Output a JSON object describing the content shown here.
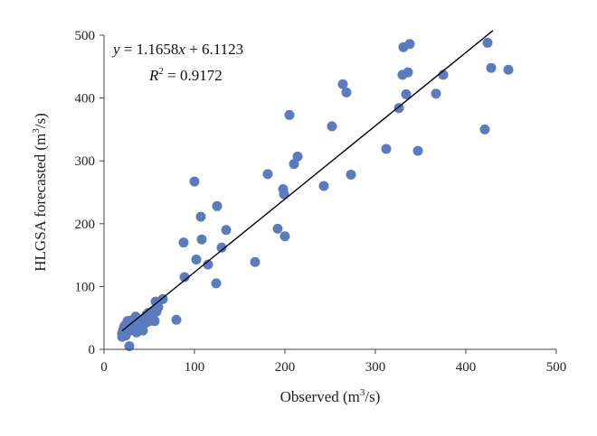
{
  "chart_data": {
    "type": "scatter",
    "xlabel": "Observed (m",
    "xlabel_sup": "3",
    "xlabel_tail": "/s)",
    "ylabel": "HLGSA forecasted (m",
    "ylabel_sup": "3",
    "ylabel_tail": "/s)",
    "xlim": [
      0,
      500
    ],
    "ylim": [
      0,
      500
    ],
    "xticks": [
      "0",
      "100",
      "200",
      "300",
      "400",
      "500"
    ],
    "yticks": [
      "0",
      "100",
      "200",
      "300",
      "400",
      "500"
    ],
    "grid": false,
    "marker_color": "#5b7bbf",
    "line_color": "#000000",
    "equation": {
      "y_var": "y",
      "text": " = 1.1658",
      "x_var": "x",
      "text2": " + 6.1123"
    },
    "r2": {
      "var": "R",
      "sup": "2",
      "text": " = 0.9172"
    },
    "fit": {
      "slope": 1.1658,
      "intercept": 6.1123,
      "x_start": 20,
      "x_end": 430
    },
    "points": [
      [
        20,
        20
      ],
      [
        20,
        25
      ],
      [
        21,
        30
      ],
      [
        22,
        35
      ],
      [
        23,
        38
      ],
      [
        24,
        22
      ],
      [
        25,
        28
      ],
      [
        26,
        45
      ],
      [
        27,
        40
      ],
      [
        28,
        5
      ],
      [
        28,
        33
      ],
      [
        29,
        30
      ],
      [
        30,
        46
      ],
      [
        31,
        42
      ],
      [
        32,
        38
      ],
      [
        33,
        35
      ],
      [
        34,
        48
      ],
      [
        35,
        52
      ],
      [
        36,
        27
      ],
      [
        37,
        44
      ],
      [
        38,
        30
      ],
      [
        39,
        47
      ],
      [
        40,
        40
      ],
      [
        41,
        38
      ],
      [
        42,
        36
      ],
      [
        43,
        30
      ],
      [
        44,
        48
      ],
      [
        45,
        50
      ],
      [
        46,
        42
      ],
      [
        47,
        55
      ],
      [
        48,
        46
      ],
      [
        49,
        58
      ],
      [
        50,
        45
      ],
      [
        52,
        52
      ],
      [
        54,
        48
      ],
      [
        55,
        62
      ],
      [
        56,
        45
      ],
      [
        57,
        76
      ],
      [
        58,
        60
      ],
      [
        60,
        67
      ],
      [
        65,
        80
      ],
      [
        80,
        47
      ],
      [
        88,
        170
      ],
      [
        89,
        115
      ],
      [
        100,
        267
      ],
      [
        102,
        143
      ],
      [
        107,
        211
      ],
      [
        108,
        175
      ],
      [
        115,
        135
      ],
      [
        124,
        105
      ],
      [
        125,
        228
      ],
      [
        130,
        162
      ],
      [
        135,
        190
      ],
      [
        167,
        139
      ],
      [
        181,
        279
      ],
      [
        192,
        192
      ],
      [
        198,
        255
      ],
      [
        199,
        247
      ],
      [
        200,
        180
      ],
      [
        205,
        373
      ],
      [
        210,
        295
      ],
      [
        214,
        307
      ],
      [
        243,
        260
      ],
      [
        252,
        355
      ],
      [
        264,
        422
      ],
      [
        268,
        409
      ],
      [
        273,
        278
      ],
      [
        312,
        319
      ],
      [
        326,
        384
      ],
      [
        330,
        437
      ],
      [
        331,
        481
      ],
      [
        334,
        406
      ],
      [
        336,
        441
      ],
      [
        338,
        486
      ],
      [
        347,
        316
      ],
      [
        367,
        407
      ],
      [
        375,
        437
      ],
      [
        421,
        350
      ],
      [
        424,
        488
      ],
      [
        428,
        448
      ],
      [
        447,
        445
      ]
    ]
  }
}
